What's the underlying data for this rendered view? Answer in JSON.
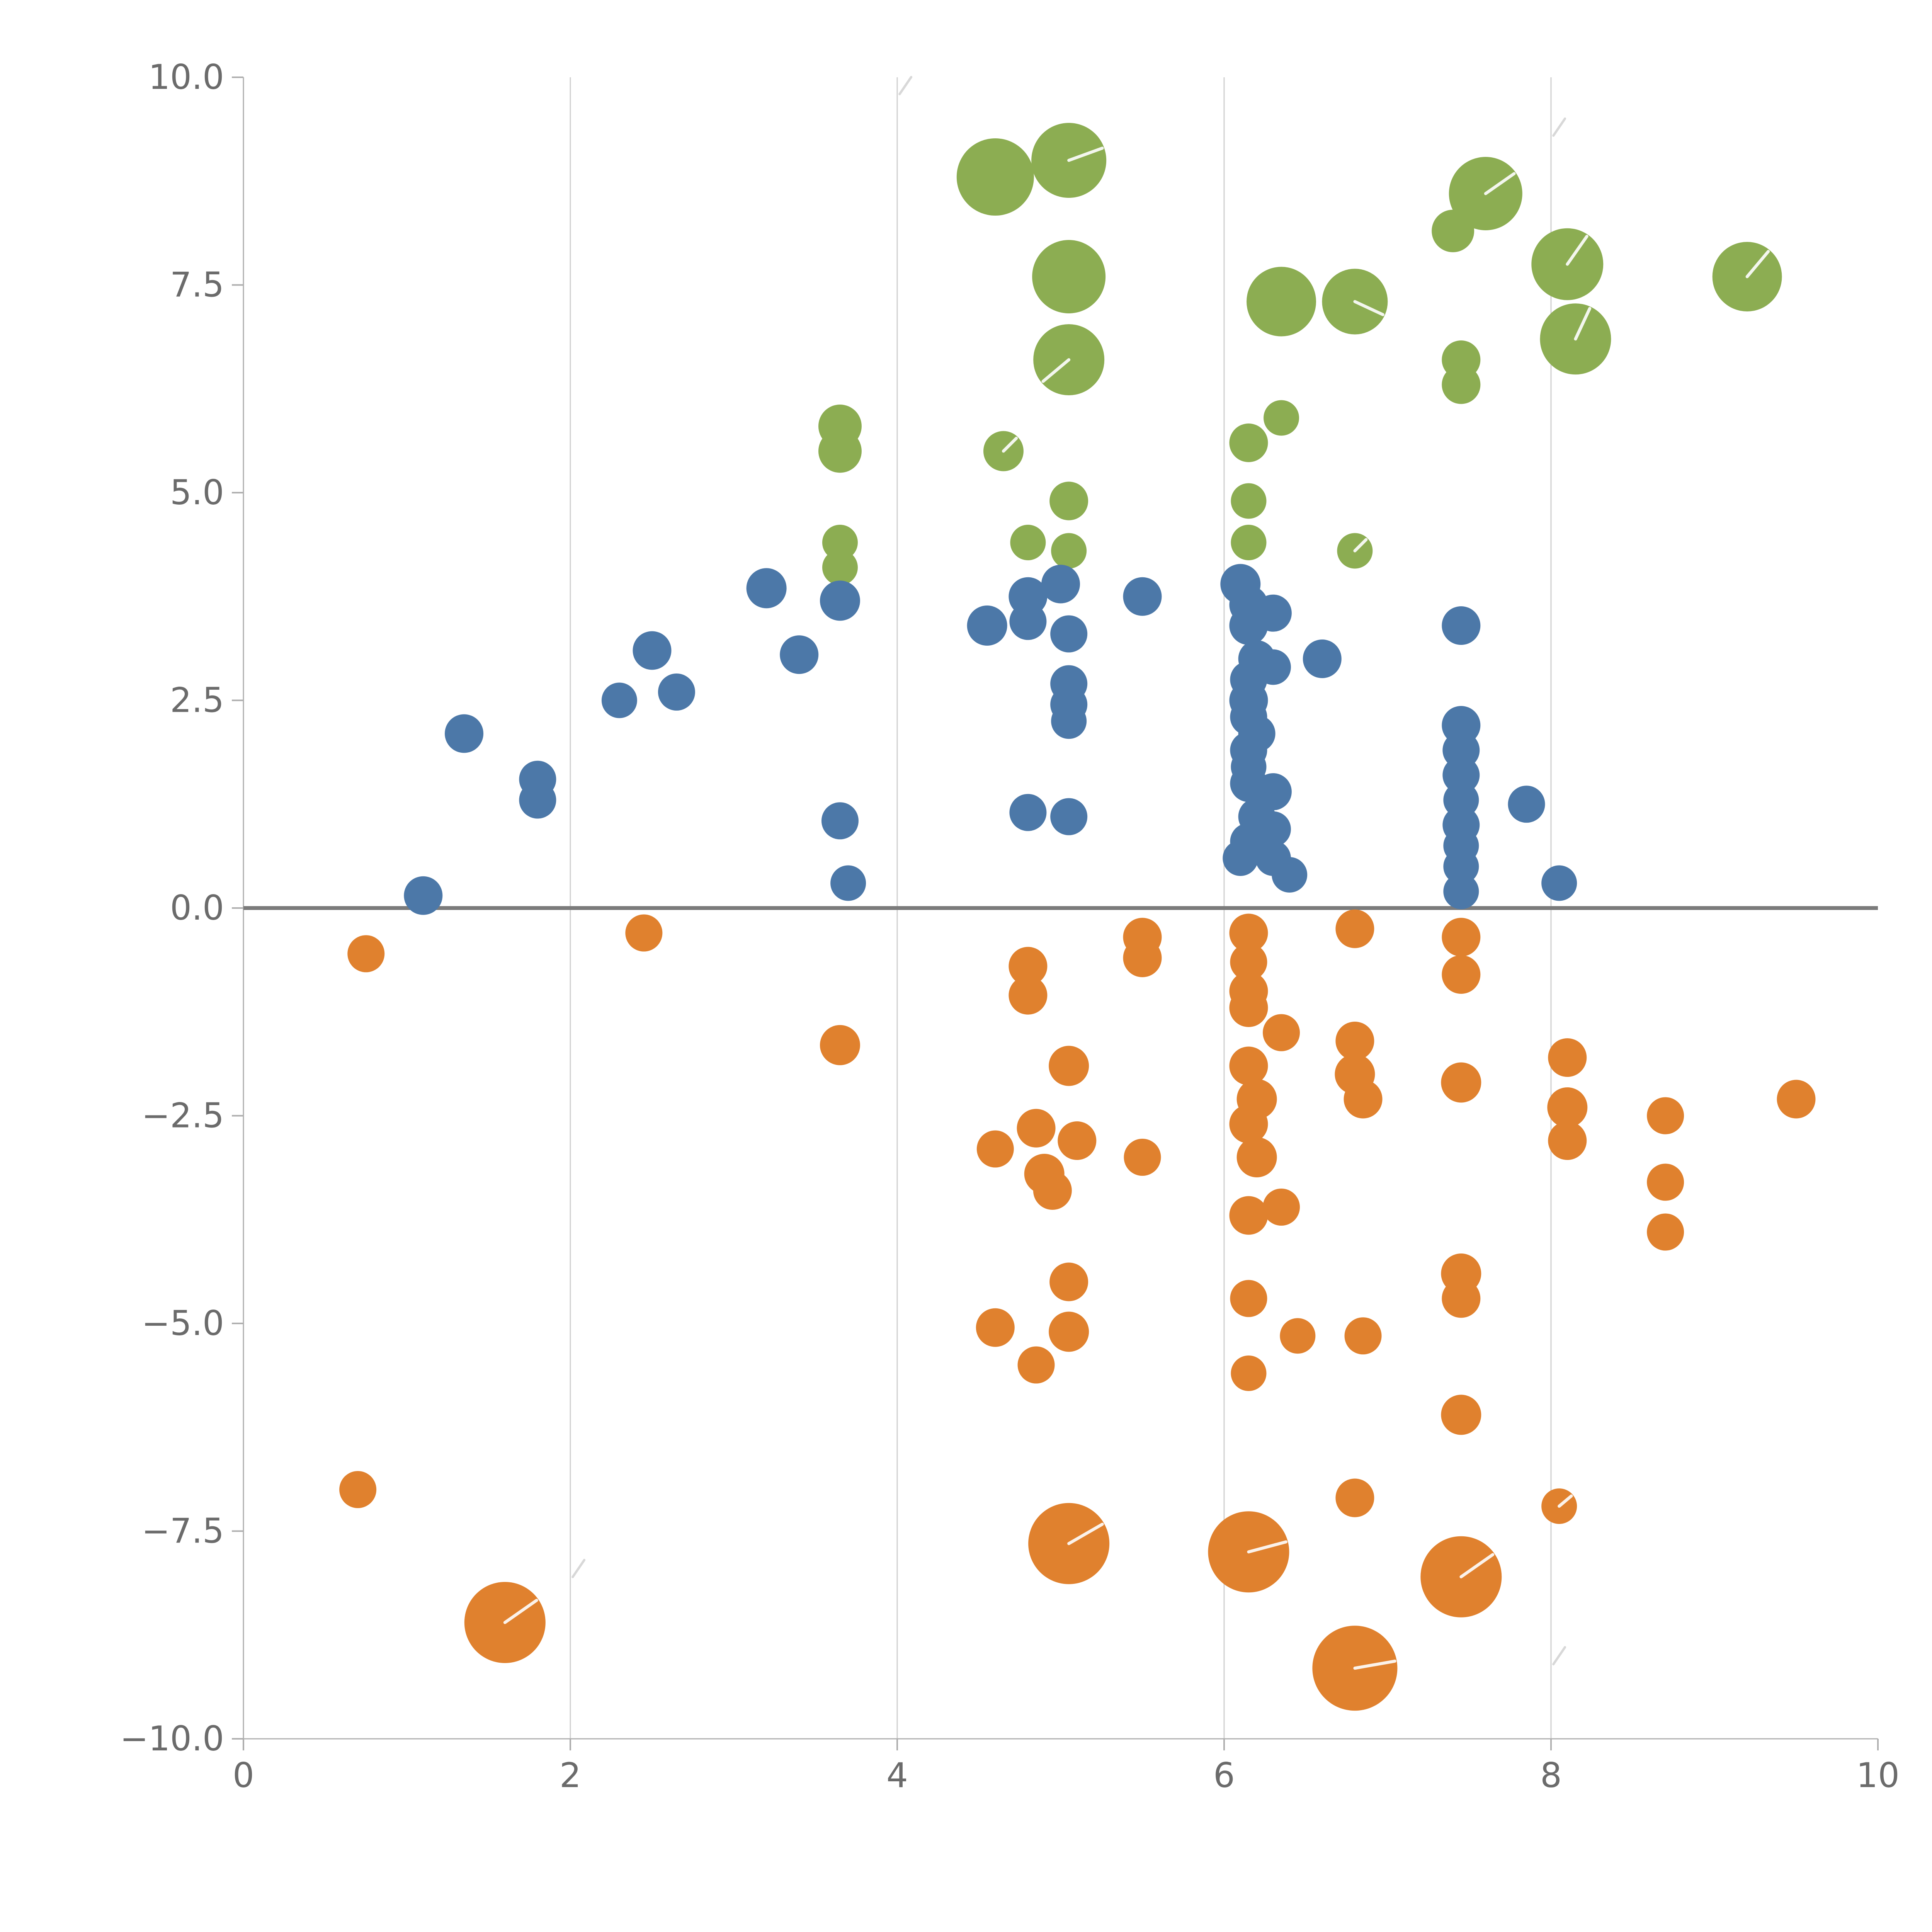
{
  "chart_data": {
    "type": "scatter",
    "title": "",
    "xlabel": "",
    "ylabel": "",
    "xlim": [
      0,
      10
    ],
    "ylim": [
      -10,
      10
    ],
    "x_ticks": [
      0,
      2,
      4,
      6,
      8,
      10
    ],
    "x_tick_labels": [
      "0",
      "2",
      "4",
      "6",
      "8",
      "10"
    ],
    "y_ticks": [
      10,
      7.5,
      5,
      2.5,
      0,
      -2.5,
      -5,
      -7.5,
      -10
    ],
    "y_tick_labels": [
      "10.0",
      "7.5",
      "5.0",
      "2.5",
      "0.0",
      "−2.5",
      "−5.0",
      "−7.5",
      "−10.0"
    ],
    "grid_x": [
      2,
      4,
      6,
      8
    ],
    "grid": "vertical-only",
    "zero_line": true,
    "zero_line_color": "#7b7b7b",
    "gridline_color": "#cfcfcf",
    "spine_color": "#aeaeae",
    "tick_label_color": "#6b6b6b",
    "legend": "none",
    "series": [
      {
        "name": "green",
        "color": "#8cad52",
        "points": [
          [
            4.6,
            8.8,
            100,
            null
          ],
          [
            5.05,
            9.0,
            97,
            -20
          ],
          [
            7.6,
            8.6,
            95,
            -35
          ],
          [
            7.4,
            8.15,
            55,
            null
          ],
          [
            5.05,
            7.6,
            95,
            null
          ],
          [
            8.1,
            7.75,
            93,
            -55
          ],
          [
            9.2,
            7.6,
            90,
            -50
          ],
          [
            6.35,
            7.3,
            90,
            null
          ],
          [
            6.8,
            7.3,
            85,
            25
          ],
          [
            8.15,
            6.85,
            92,
            -65
          ],
          [
            5.05,
            6.6,
            92,
            140
          ],
          [
            7.45,
            6.6,
            50,
            null
          ],
          [
            7.45,
            6.3,
            50,
            null
          ],
          [
            3.65,
            5.8,
            56,
            null
          ],
          [
            3.65,
            5.5,
            56,
            null
          ],
          [
            4.65,
            5.5,
            52,
            -45
          ],
          [
            6.35,
            5.9,
            46,
            null
          ],
          [
            6.15,
            5.6,
            50,
            null
          ],
          [
            5.05,
            4.9,
            50,
            null
          ],
          [
            6.15,
            4.9,
            46,
            null
          ],
          [
            4.8,
            4.4,
            46,
            null
          ],
          [
            5.05,
            4.3,
            46,
            null
          ],
          [
            3.65,
            4.4,
            46,
            null
          ],
          [
            3.65,
            4.1,
            46,
            null
          ],
          [
            6.15,
            4.4,
            46,
            null
          ],
          [
            6.8,
            4.3,
            46,
            -45
          ]
        ]
      },
      {
        "name": "blue",
        "color": "#4c78a8",
        "points": [
          [
            1.1,
            0.15,
            50,
            null
          ],
          [
            1.35,
            2.1,
            50,
            null
          ],
          [
            1.8,
            1.55,
            48,
            null
          ],
          [
            1.8,
            1.3,
            48,
            null
          ],
          [
            2.3,
            2.5,
            46,
            null
          ],
          [
            2.5,
            3.1,
            50,
            null
          ],
          [
            2.65,
            2.6,
            48,
            null
          ],
          [
            3.2,
            3.85,
            52,
            null
          ],
          [
            3.4,
            3.05,
            50,
            null
          ],
          [
            3.65,
            3.7,
            52,
            null
          ],
          [
            3.65,
            1.05,
            48,
            null
          ],
          [
            3.7,
            0.3,
            46,
            null
          ],
          [
            4.55,
            3.4,
            52,
            null
          ],
          [
            4.8,
            3.75,
            50,
            null
          ],
          [
            4.8,
            3.45,
            48,
            null
          ],
          [
            5.0,
            3.9,
            50,
            null
          ],
          [
            5.05,
            3.3,
            48,
            null
          ],
          [
            5.05,
            2.7,
            48,
            null
          ],
          [
            5.05,
            2.45,
            48,
            null
          ],
          [
            5.05,
            2.25,
            46,
            null
          ],
          [
            4.8,
            1.15,
            48,
            null
          ],
          [
            5.05,
            1.1,
            48,
            null
          ],
          [
            5.5,
            3.75,
            50,
            null
          ],
          [
            6.1,
            3.9,
            52,
            null
          ],
          [
            6.15,
            3.65,
            50,
            null
          ],
          [
            6.3,
            3.55,
            48,
            null
          ],
          [
            6.15,
            3.4,
            50,
            null
          ],
          [
            6.2,
            3.0,
            48,
            null
          ],
          [
            6.15,
            2.75,
            48,
            null
          ],
          [
            6.3,
            2.9,
            46,
            null
          ],
          [
            6.15,
            2.5,
            50,
            null
          ],
          [
            6.15,
            2.3,
            48,
            null
          ],
          [
            6.2,
            2.1,
            48,
            null
          ],
          [
            6.15,
            1.9,
            48,
            null
          ],
          [
            6.15,
            1.7,
            46,
            null
          ],
          [
            6.15,
            1.5,
            48,
            null
          ],
          [
            6.3,
            1.4,
            48,
            null
          ],
          [
            6.2,
            1.1,
            48,
            null
          ],
          [
            6.3,
            0.95,
            46,
            null
          ],
          [
            6.15,
            0.8,
            48,
            null
          ],
          [
            6.1,
            0.6,
            46,
            null
          ],
          [
            6.3,
            0.6,
            46,
            null
          ],
          [
            6.4,
            0.4,
            46,
            null
          ],
          [
            6.6,
            3.0,
            50,
            null
          ],
          [
            7.45,
            3.4,
            50,
            null
          ],
          [
            7.45,
            2.2,
            50,
            null
          ],
          [
            7.45,
            1.9,
            48,
            null
          ],
          [
            7.45,
            1.6,
            48,
            null
          ],
          [
            7.45,
            1.3,
            46,
            null
          ],
          [
            7.45,
            1.0,
            48,
            null
          ],
          [
            7.45,
            0.75,
            46,
            null
          ],
          [
            7.45,
            0.5,
            46,
            null
          ],
          [
            7.45,
            0.2,
            46,
            null
          ],
          [
            7.85,
            1.25,
            48,
            null
          ],
          [
            8.05,
            0.3,
            46,
            null
          ]
        ]
      },
      {
        "name": "orange",
        "color": "#e0812e",
        "points": [
          [
            0.75,
            -0.55,
            48,
            null
          ],
          [
            0.7,
            -7.0,
            48,
            null
          ],
          [
            1.6,
            -8.6,
            105,
            -35
          ],
          [
            2.45,
            -0.3,
            48,
            null
          ],
          [
            3.65,
            -1.65,
            52,
            null
          ],
          [
            4.8,
            -0.7,
            50,
            null
          ],
          [
            4.8,
            -1.05,
            50,
            null
          ],
          [
            5.05,
            -1.9,
            52,
            null
          ],
          [
            4.6,
            -2.9,
            48,
            null
          ],
          [
            4.85,
            -2.65,
            50,
            null
          ],
          [
            5.1,
            -2.8,
            50,
            null
          ],
          [
            4.9,
            -3.2,
            52,
            null
          ],
          [
            4.95,
            -3.4,
            50,
            null
          ],
          [
            5.5,
            -3.0,
            48,
            null
          ],
          [
            5.5,
            -0.35,
            50,
            null
          ],
          [
            5.5,
            -0.6,
            50,
            null
          ],
          [
            5.05,
            -4.5,
            50,
            null
          ],
          [
            4.6,
            -5.05,
            50,
            null
          ],
          [
            5.05,
            -5.1,
            52,
            null
          ],
          [
            4.85,
            -5.5,
            48,
            null
          ],
          [
            6.15,
            -0.3,
            50,
            null
          ],
          [
            6.15,
            -0.65,
            48,
            null
          ],
          [
            6.15,
            -1.0,
            50,
            null
          ],
          [
            6.15,
            -1.2,
            50,
            null
          ],
          [
            6.35,
            -1.5,
            48,
            null
          ],
          [
            6.15,
            -1.9,
            50,
            null
          ],
          [
            6.2,
            -2.3,
            52,
            null
          ],
          [
            6.15,
            -2.6,
            50,
            null
          ],
          [
            6.2,
            -3.0,
            52,
            null
          ],
          [
            6.15,
            -3.7,
            50,
            null
          ],
          [
            6.35,
            -3.6,
            48,
            null
          ],
          [
            6.15,
            -4.7,
            48,
            null
          ],
          [
            6.45,
            -5.15,
            46,
            null
          ],
          [
            6.15,
            -5.6,
            46,
            null
          ],
          [
            6.8,
            -0.25,
            50,
            null
          ],
          [
            6.8,
            -1.6,
            50,
            null
          ],
          [
            6.8,
            -2.0,
            52,
            null
          ],
          [
            6.85,
            -2.3,
            50,
            null
          ],
          [
            6.85,
            -5.15,
            48,
            null
          ],
          [
            7.45,
            -0.35,
            50,
            null
          ],
          [
            7.45,
            -0.8,
            50,
            null
          ],
          [
            7.45,
            -2.1,
            52,
            null
          ],
          [
            7.45,
            -4.4,
            52,
            null
          ],
          [
            7.45,
            -4.7,
            50,
            null
          ],
          [
            7.45,
            -6.1,
            52,
            null
          ],
          [
            8.1,
            -1.8,
            50,
            null
          ],
          [
            8.1,
            -2.4,
            52,
            null
          ],
          [
            8.1,
            -2.8,
            50,
            null
          ],
          [
            8.7,
            -2.5,
            48,
            null
          ],
          [
            8.7,
            -3.3,
            48,
            null
          ],
          [
            8.7,
            -3.9,
            48,
            null
          ],
          [
            9.5,
            -2.3,
            50,
            null
          ],
          [
            6.8,
            -7.1,
            50,
            null
          ],
          [
            8.05,
            -7.2,
            46,
            -40
          ],
          [
            5.05,
            -7.65,
            105,
            -30
          ],
          [
            6.15,
            -7.75,
            105,
            -15
          ],
          [
            7.45,
            -8.05,
            105,
            -35
          ],
          [
            6.8,
            -9.15,
            110,
            -10
          ]
        ]
      }
    ],
    "clipped_marks": [
      [
        4.05,
        9.9
      ],
      [
        8.05,
        9.4
      ],
      [
        2.05,
        -7.95
      ],
      [
        8.05,
        -9.0
      ]
    ]
  }
}
